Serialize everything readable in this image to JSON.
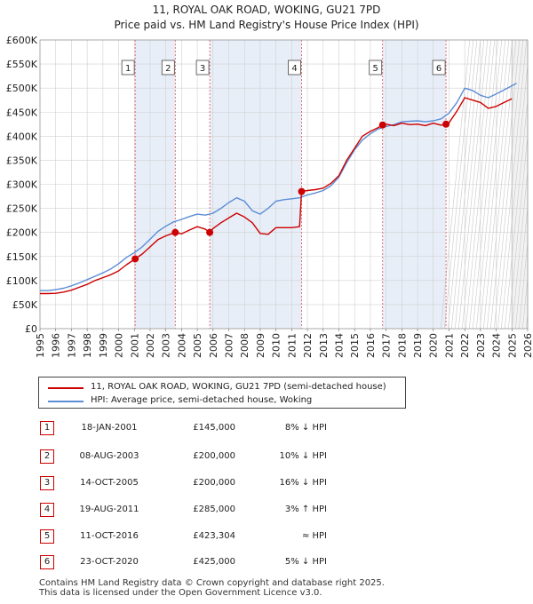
{
  "chart_data": {
    "type": "line",
    "title": "11, ROYAL OAK ROAD, WOKING, GU21 7PD",
    "subtitle": "Price paid vs. HM Land Registry's House Price Index (HPI)",
    "xlim": [
      1995,
      2026
    ],
    "ylim": [
      0,
      600000
    ],
    "x_ticks": [
      "1995",
      "1996",
      "1997",
      "1998",
      "1999",
      "2000",
      "2001",
      "2002",
      "2003",
      "2004",
      "2005",
      "2006",
      "2007",
      "2008",
      "2009",
      "2010",
      "2011",
      "2012",
      "2013",
      "2014",
      "2015",
      "2016",
      "2017",
      "2018",
      "2019",
      "2020",
      "2021",
      "2022",
      "2023",
      "2024",
      "2025",
      "2026"
    ],
    "y_ticks": [
      {
        "value": 0,
        "label": "£0"
      },
      {
        "value": 50000,
        "label": "£50K"
      },
      {
        "value": 100000,
        "label": "£100K"
      },
      {
        "value": 150000,
        "label": "£150K"
      },
      {
        "value": 200000,
        "label": "£200K"
      },
      {
        "value": 250000,
        "label": "£250K"
      },
      {
        "value": 300000,
        "label": "£300K"
      },
      {
        "value": 350000,
        "label": "£350K"
      },
      {
        "value": 400000,
        "label": "£400K"
      },
      {
        "value": 450000,
        "label": "£450K"
      },
      {
        "value": 500000,
        "label": "£500K"
      },
      {
        "value": 550000,
        "label": "£550K"
      },
      {
        "value": 600000,
        "label": "£600K"
      }
    ],
    "shaded_periods": [
      [
        2001.05,
        2003.6
      ],
      [
        2005.79,
        2011.63
      ],
      [
        2016.78,
        2020.81
      ]
    ],
    "forecast_start": 2025.0,
    "series": [
      {
        "name": "11, ROYAL OAK ROAD, WOKING, GU21 7PD (semi-detached house)",
        "color": "#cc0000",
        "x": [
          1995.0,
          1995.5,
          1996.0,
          1996.5,
          1997.0,
          1997.5,
          1998.0,
          1998.5,
          1999.0,
          1999.5,
          2000.0,
          2000.5,
          2001.05,
          2001.5,
          2002.0,
          2002.5,
          2003.0,
          2003.6,
          2004.0,
          2004.5,
          2005.0,
          2005.5,
          2005.79,
          2006.0,
          2006.5,
          2007.0,
          2007.5,
          2008.0,
          2008.5,
          2009.0,
          2009.5,
          2010.0,
          2010.5,
          2011.0,
          2011.5,
          2011.63,
          2012.0,
          2012.5,
          2013.0,
          2013.5,
          2014.0,
          2014.5,
          2015.0,
          2015.5,
          2016.0,
          2016.5,
          2016.78,
          2017.0,
          2017.5,
          2018.0,
          2018.5,
          2019.0,
          2019.5,
          2020.0,
          2020.5,
          2020.81,
          2021.0,
          2021.5,
          2022.0,
          2022.5,
          2023.0,
          2023.5,
          2024.0,
          2024.5,
          2025.0
        ],
        "values": [
          73000,
          73000,
          73500,
          76000,
          80000,
          86000,
          92000,
          100000,
          106000,
          112000,
          120000,
          133000,
          145000,
          155000,
          170000,
          185000,
          193000,
          200000,
          197000,
          205000,
          212000,
          207000,
          200000,
          208000,
          220000,
          230000,
          240000,
          232000,
          220000,
          198000,
          196000,
          210000,
          210000,
          210000,
          212000,
          285000,
          287000,
          289000,
          292000,
          302000,
          318000,
          350000,
          375000,
          400000,
          410000,
          418000,
          423304,
          425000,
          422000,
          427000,
          424000,
          425000,
          422000,
          427000,
          423000,
          425000,
          428000,
          452000,
          480000,
          475000,
          470000,
          458000,
          462000,
          470000,
          478000
        ]
      },
      {
        "name": "HPI: Average price, semi-detached house, Woking",
        "color": "#5b8ed6",
        "x": [
          1995.0,
          1995.5,
          1996.0,
          1996.5,
          1997.0,
          1997.5,
          1998.0,
          1998.5,
          1999.0,
          1999.5,
          2000.0,
          2000.5,
          2001.0,
          2001.5,
          2002.0,
          2002.5,
          2003.0,
          2003.5,
          2004.0,
          2004.5,
          2005.0,
          2005.5,
          2006.0,
          2006.5,
          2007.0,
          2007.5,
          2008.0,
          2008.5,
          2009.0,
          2009.5,
          2010.0,
          2010.5,
          2011.0,
          2011.5,
          2012.0,
          2012.5,
          2013.0,
          2013.5,
          2014.0,
          2014.5,
          2015.0,
          2015.5,
          2016.0,
          2016.5,
          2017.0,
          2017.5,
          2018.0,
          2018.5,
          2019.0,
          2019.5,
          2020.0,
          2020.5,
          2021.0,
          2021.5,
          2022.0,
          2022.5,
          2023.0,
          2023.5,
          2024.0,
          2024.5,
          2025.0,
          2025.3
        ],
        "values": [
          79000,
          79000,
          81000,
          84000,
          89000,
          95000,
          102000,
          109000,
          116000,
          124000,
          135000,
          148000,
          158000,
          170000,
          186000,
          202000,
          213000,
          222000,
          227000,
          233000,
          238000,
          236000,
          240000,
          250000,
          262000,
          272000,
          265000,
          245000,
          238000,
          250000,
          265000,
          268000,
          270000,
          272000,
          278000,
          282000,
          287000,
          297000,
          315000,
          345000,
          372000,
          392000,
          405000,
          415000,
          420000,
          424000,
          430000,
          431000,
          432000,
          430000,
          432000,
          436000,
          448000,
          470000,
          500000,
          495000,
          485000,
          480000,
          488000,
          496000,
          505000,
          510000
        ]
      }
    ],
    "sales": [
      {
        "num": "1",
        "date": "18-JAN-2001",
        "x": 2001.05,
        "price": "£145,000",
        "value": 145000,
        "hpi": "8% ↓ HPI"
      },
      {
        "num": "2",
        "date": "08-AUG-2003",
        "x": 2003.6,
        "price": "£200,000",
        "value": 200000,
        "hpi": "10% ↓ HPI"
      },
      {
        "num": "3",
        "date": "14-OCT-2005",
        "x": 2005.79,
        "price": "£200,000",
        "value": 200000,
        "hpi": "16% ↓ HPI"
      },
      {
        "num": "4",
        "date": "19-AUG-2011",
        "x": 2011.63,
        "price": "£285,000",
        "value": 285000,
        "hpi": "3% ↑ HPI"
      },
      {
        "num": "5",
        "date": "11-OCT-2016",
        "x": 2016.78,
        "price": "£423,304",
        "value": 423304,
        "hpi": "≈ HPI"
      },
      {
        "num": "6",
        "date": "23-OCT-2020",
        "x": 2020.81,
        "price": "£425,000",
        "value": 425000,
        "hpi": "5% ↓ HPI"
      }
    ]
  },
  "legend": {
    "property_label": "11, ROYAL OAK ROAD, WOKING, GU21 7PD (semi-detached house)",
    "hpi_label": "HPI: Average price, semi-detached house, Woking"
  },
  "footer": {
    "line1": "Contains HM Land Registry data © Crown copyright and database right 2025.",
    "line2": "This data is licensed under the Open Government Licence v3.0."
  },
  "colors": {
    "property": "#cc0000",
    "hpi": "#5b8ed6",
    "shade": "#e8eef8",
    "grid": "#d0d0d0",
    "marker_border": "#cc0000"
  }
}
